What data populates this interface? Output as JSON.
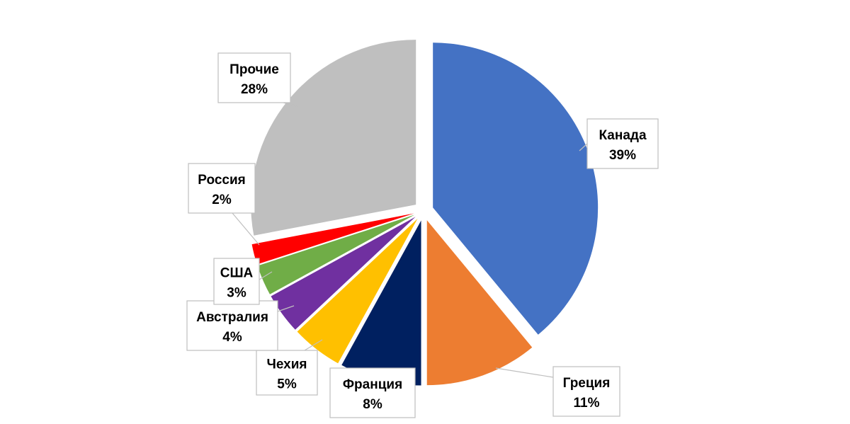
{
  "chart_data": {
    "type": "pie",
    "title": "",
    "start_angle_deg": 0,
    "direction": "clockwise",
    "exploded": true,
    "slices": [
      {
        "label": "Канада",
        "value": 39,
        "value_label": "39%",
        "color": "#4472C4"
      },
      {
        "label": "Греция",
        "value": 11,
        "value_label": "11%",
        "color": "#ED7D31"
      },
      {
        "label": "Франция",
        "value": 8,
        "value_label": "8%",
        "color": "#002060"
      },
      {
        "label": "Чехия",
        "value": 5,
        "value_label": "5%",
        "color": "#FFC000"
      },
      {
        "label": "Австралия",
        "value": 4,
        "value_label": "4%",
        "color": "#7030A0"
      },
      {
        "label": "США",
        "value": 3,
        "value_label": "3%",
        "color": "#70AD47"
      },
      {
        "label": "Россия",
        "value": 2,
        "value_label": "2%",
        "color": "#FF0000"
      },
      {
        "label": "Прочие",
        "value": 28,
        "value_label": "28%",
        "color": "#BFBFBF"
      }
    ]
  }
}
